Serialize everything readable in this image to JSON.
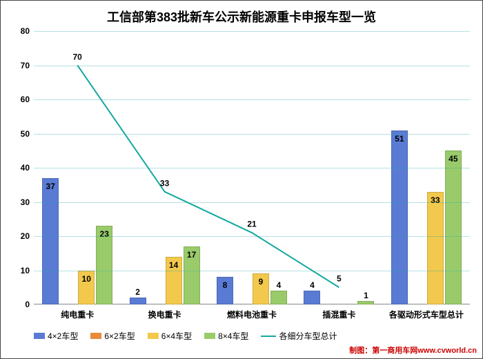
{
  "title": "工信部第383批新车公示新能源重卡申报车型一览",
  "title_fontsize": 18,
  "credit": "制图：第一商用车网www.cvworld.cn",
  "ylim": [
    0,
    80
  ],
  "ytick_step": 10,
  "grid_color": "#2aa9a6",
  "background_color": "#ffffff",
  "categories": [
    "纯电重卡",
    "换电重卡",
    "燃料电池重卡",
    "插混重卡",
    "各驱动形式车型总计"
  ],
  "series": [
    {
      "name": "4×2车型",
      "color": "#5a7bd4",
      "values": [
        37,
        2,
        8,
        4,
        51
      ]
    },
    {
      "name": "6×2车型",
      "color": "#e98a3a",
      "values": [
        null,
        null,
        null,
        null,
        null
      ]
    },
    {
      "name": "6×4车型",
      "color": "#f2c94c",
      "values": [
        10,
        14,
        9,
        null,
        33
      ]
    },
    {
      "name": "8×4车型",
      "color": "#9acb6a",
      "values": [
        23,
        17,
        4,
        1,
        45
      ]
    }
  ],
  "line_series": {
    "name": "各细分车型总计",
    "color": "#13a89e",
    "values": [
      70,
      33,
      21,
      5
    ],
    "line_width": 2
  },
  "label_fontsize": 12,
  "line_groups": 4
}
